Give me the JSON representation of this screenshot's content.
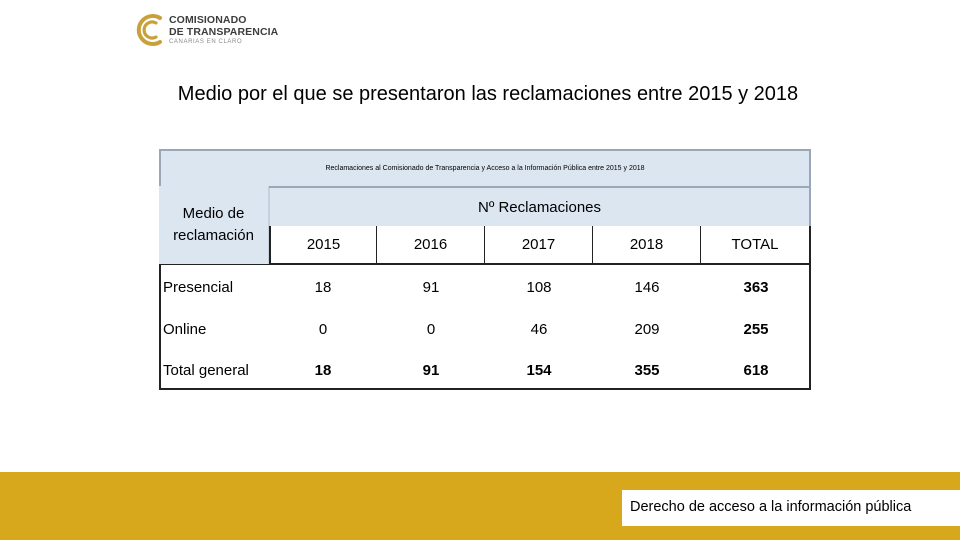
{
  "logo": {
    "line1": "COMISIONADO",
    "line2": "DE TRANSPARENCIA",
    "line3": "CANARIAS EN CLARO"
  },
  "title": "Medio por el que se presentaron las reclamaciones entre 2015 y 2018",
  "table": {
    "caption": "Reclamaciones al Comisionado de Transparencia y Acceso a la Información Pública entre 2015 y 2018",
    "row_header": "Medio de reclamación",
    "group_header": "Nº Reclamaciones",
    "columns": [
      "2015",
      "2016",
      "2017",
      "2018",
      "TOTAL"
    ],
    "rows": [
      {
        "label": "Presencial",
        "values": [
          "18",
          "91",
          "108",
          "146",
          "363"
        ]
      },
      {
        "label": "Online",
        "values": [
          "0",
          "0",
          "46",
          "209",
          "255"
        ]
      },
      {
        "label": "Total general",
        "values": [
          "18",
          "91",
          "154",
          "355",
          "618"
        ]
      }
    ]
  },
  "footer": {
    "text": "Derecho de acceso a la información pública"
  },
  "colors": {
    "header_fill": "#dce6f1",
    "footer_bar": "#d8a81c",
    "logo_gold": "#c8a13a"
  }
}
